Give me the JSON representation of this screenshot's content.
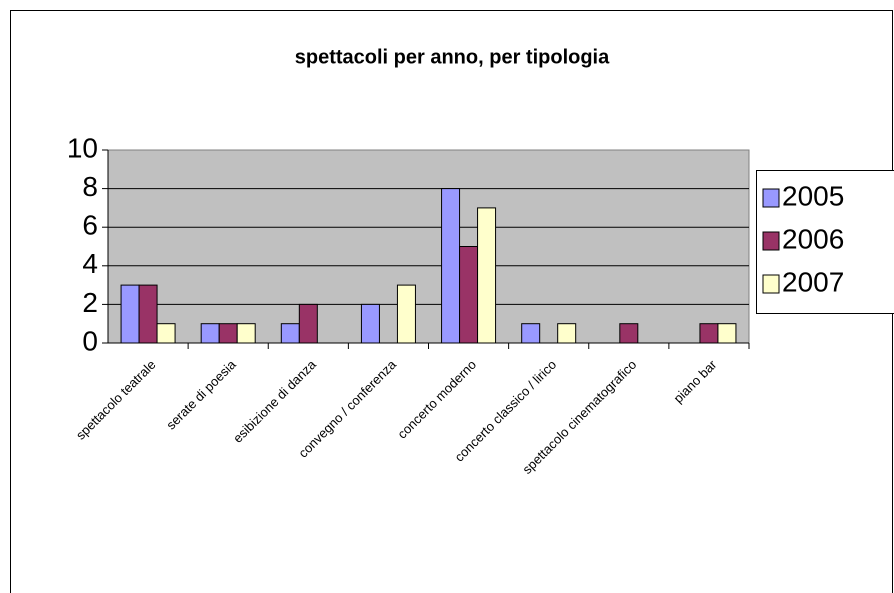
{
  "chart_data": {
    "type": "bar",
    "title": "spettacoli per anno, per tipologia",
    "categories": [
      "spettacolo teatrale",
      "serate di poesia",
      "esibizione di danza",
      "convegno / conferenza",
      "concerto moderno",
      "concerto classico / lirico",
      "spettacolo cinematografico",
      "piano bar"
    ],
    "series": [
      {
        "name": "2005",
        "color": "#9999ff",
        "values": [
          3,
          1,
          1,
          2,
          8,
          1,
          0,
          0
        ]
      },
      {
        "name": "2006",
        "color": "#993366",
        "values": [
          3,
          1,
          2,
          0,
          5,
          0,
          1,
          1
        ]
      },
      {
        "name": "2007",
        "color": "#ffffcc",
        "values": [
          1,
          1,
          0,
          3,
          7,
          1,
          0,
          1
        ]
      }
    ],
    "ylim": [
      0,
      10
    ],
    "yticks": [
      0,
      2,
      4,
      6,
      8,
      10
    ],
    "grid": true,
    "legend": "right"
  }
}
